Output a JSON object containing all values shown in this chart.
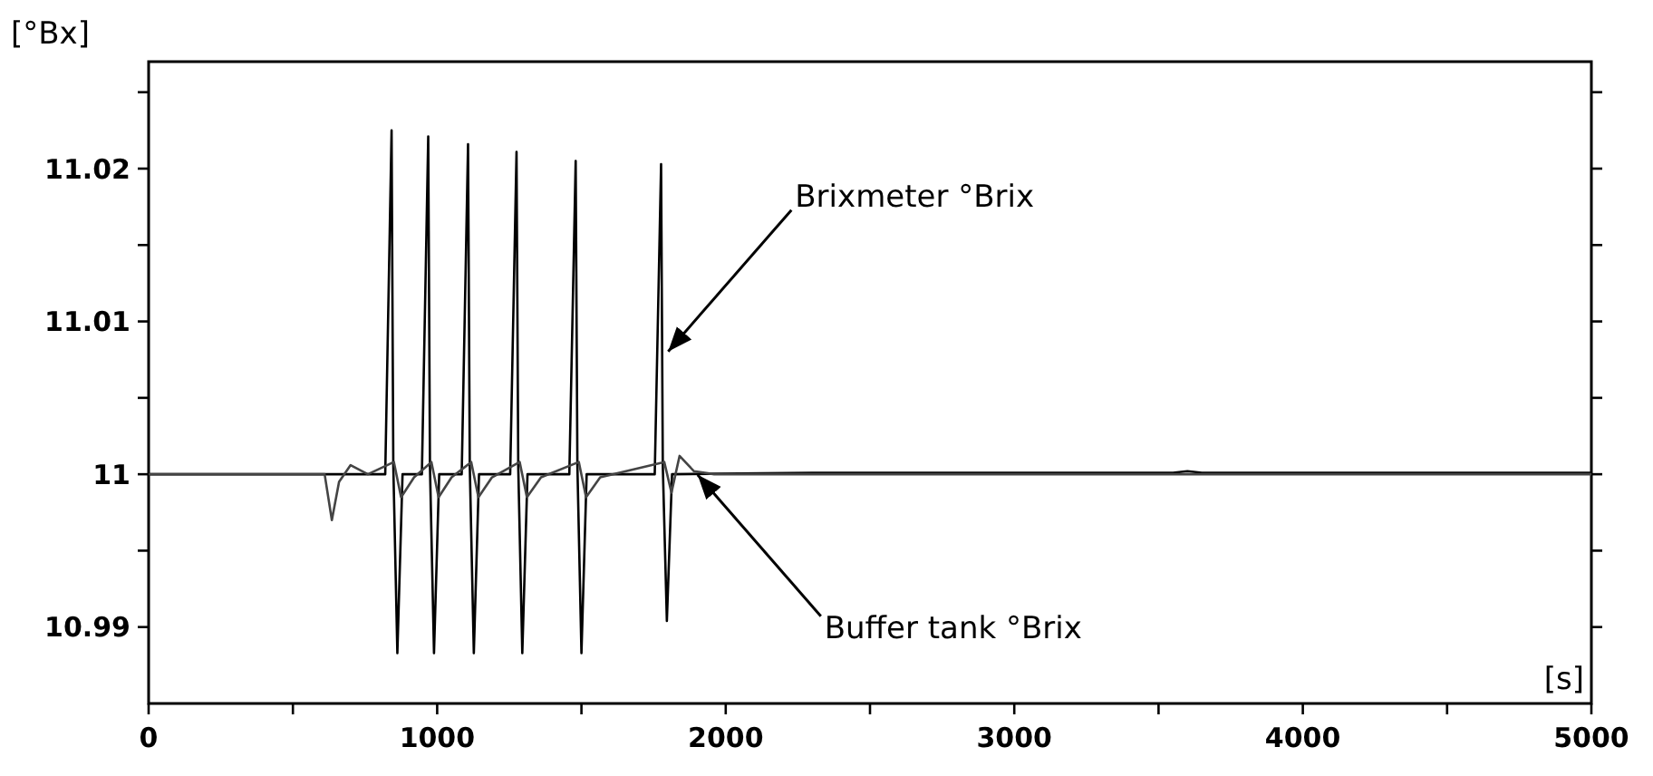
{
  "chart_data": {
    "type": "line",
    "ylabel": "[°Bx]",
    "xlabel": "[s]",
    "xlim": [
      0,
      5000
    ],
    "ylim": [
      10.985,
      11.027
    ],
    "xticks": [
      0,
      {
        "value": 500,
        "label": null
      },
      1000,
      {
        "value": 1500,
        "label": null
      },
      2000,
      {
        "value": 2500,
        "label": null
      },
      3000,
      {
        "value": 3500,
        "label": null
      },
      4000,
      {
        "value": 4500,
        "label": null
      },
      5000
    ],
    "yticks": [
      10.99,
      {
        "value": 10.995,
        "label": null
      },
      11,
      {
        "value": 11.005,
        "label": null
      },
      11.01,
      {
        "value": 11.015,
        "label": null
      },
      11.02,
      {
        "value": 11.025,
        "label": null
      }
    ],
    "grid": false,
    "line_style": "solid",
    "marker": "none",
    "series": [
      {
        "color": "#000000",
        "x": [
          0,
          820,
          842,
          848,
          862,
          880,
          947,
          969,
          975,
          989,
          1007,
          1085,
          1107,
          1113,
          1127,
          1145,
          1253,
          1275,
          1281,
          1295,
          1313,
          1458,
          1480,
          1486,
          1500,
          1518,
          1754,
          1776,
          1782,
          1796,
          1814,
          2300,
          3550,
          3600,
          3650,
          5000
        ],
        "values": [
          11,
          11,
          11.0225,
          11.0005,
          10.9883,
          11,
          11,
          11.0221,
          11.0005,
          10.9883,
          11,
          11,
          11.0216,
          11.0005,
          10.9883,
          11,
          11,
          11.0211,
          11.0005,
          10.9883,
          11,
          11,
          11.0205,
          11.0005,
          10.9883,
          11,
          11,
          11.0203,
          11.0005,
          10.9904,
          11,
          11.0001,
          11.0001,
          11.0002,
          11.0001,
          11.0001
        ]
      },
      {
        "color": "#444444",
        "x": [
          0,
          610,
          635,
          660,
          700,
          760,
          850,
          875,
          920,
          980,
          1005,
          1050,
          1118,
          1143,
          1190,
          1286,
          1311,
          1360,
          1491,
          1516,
          1565,
          1787,
          1812,
          1840,
          1890,
          1960,
          5000
        ],
        "values": [
          11,
          11,
          10.997,
          10.9995,
          11.0006,
          11,
          11.0008,
          10.9985,
          10.9998,
          11.0008,
          10.9985,
          10.9998,
          11.0008,
          10.9985,
          10.9998,
          11.0008,
          10.9985,
          10.9998,
          11.0008,
          10.9985,
          10.9998,
          11.0008,
          10.9988,
          11.0012,
          11.0002,
          11,
          11
        ]
      }
    ],
    "annotations": [
      {
        "text": "Brixmeter °Brix",
        "x": 1788,
        "y": 11.0078
      },
      {
        "text": "Buffer tank °Brix",
        "x": 1890,
        "y": 11.0002
      }
    ]
  }
}
